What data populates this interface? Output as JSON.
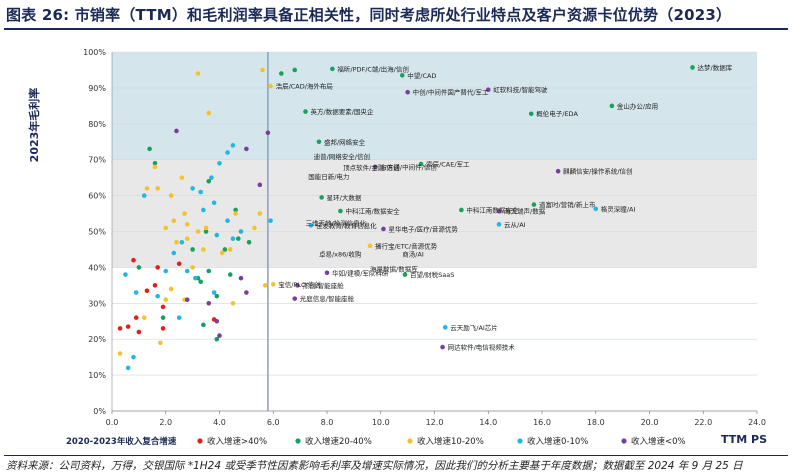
{
  "title": "图表 26: 市销率（TTM）和毛利润率具备正相关性，同时考虑所处行业特点及客户资源卡位优势（2023）",
  "source": "资料来源：公司资料，万得，交银国际 *1H24 或受季节性因素影响毛利率及增速实际情况，因此我们的分析主要基于年度数据；数据截至 2024 年 9 月 25 日",
  "colors": {
    "gt40": "#e0201b",
    "g20_40": "#16a15c",
    "g10_20": "#f5c12c",
    "g0_10": "#1fb7e6",
    "lt0": "#7b3f98",
    "band_top": "#d4e6ec",
    "band_mid": "#e8e8e8",
    "vline": "#8ea3c8"
  },
  "chart_data": {
    "type": "scatter",
    "title": "",
    "xlabel": "TTM PS",
    "ylabel": "2023年毛利率",
    "legend_title": "2020-2023年收入复合增速",
    "legend_position": "bottom",
    "xlim": [
      0,
      24
    ],
    "ylim": [
      0,
      100
    ],
    "x_ticks": [
      "0.0",
      "2.0",
      "4.0",
      "6.0",
      "8.0",
      "10.0",
      "12.0",
      "14.0",
      "16.0",
      "18.0",
      "20.0",
      "22.0",
      "24.0"
    ],
    "y_ticks": [
      "0%",
      "10%",
      "20%",
      "30%",
      "40%",
      "50%",
      "60%",
      "70%",
      "80%",
      "90%",
      "100%"
    ],
    "reference_line_x": 5.8,
    "bands": [
      {
        "from": 70,
        "to": 100,
        "fill": "band_top"
      },
      {
        "from": 40,
        "to": 70,
        "fill": "band_mid"
      }
    ],
    "series": [
      {
        "name": "收入增速>40%",
        "color_key": "gt40",
        "points": [
          {
            "x": 0.3,
            "y": 23
          },
          {
            "x": 0.6,
            "y": 23.5
          },
          {
            "x": 0.9,
            "y": 26
          },
          {
            "x": 1.0,
            "y": 22
          },
          {
            "x": 1.3,
            "y": 33.5
          },
          {
            "x": 1.6,
            "y": 35
          },
          {
            "x": 1.7,
            "y": 40
          },
          {
            "x": 1.9,
            "y": 29
          },
          {
            "x": 0.8,
            "y": 42
          },
          {
            "x": 3.8,
            "y": 25.5
          },
          {
            "x": 2.5,
            "y": 41
          },
          {
            "x": 1.9,
            "y": 23
          }
        ]
      },
      {
        "name": "收入增速20-40%",
        "color_key": "g20_40",
        "points": [
          {
            "x": 1.0,
            "y": 40
          },
          {
            "x": 1.4,
            "y": 73
          },
          {
            "x": 1.6,
            "y": 69
          },
          {
            "x": 1.9,
            "y": 26
          },
          {
            "x": 3.0,
            "y": 45
          },
          {
            "x": 3.3,
            "y": 36
          },
          {
            "x": 3.5,
            "y": 50
          },
          {
            "x": 3.6,
            "y": 64
          },
          {
            "x": 3.6,
            "y": 39
          },
          {
            "x": 3.9,
            "y": 20
          },
          {
            "x": 4.2,
            "y": 45
          },
          {
            "x": 4.4,
            "y": 38
          },
          {
            "x": 4.6,
            "y": 56
          },
          {
            "x": 4.7,
            "y": 48
          },
          {
            "x": 3.4,
            "y": 24
          },
          {
            "x": 3.2,
            "y": 37
          },
          {
            "x": 3.9,
            "y": 32
          },
          {
            "x": 6.8,
            "y": 95
          },
          {
            "x": 6.3,
            "y": 94
          },
          {
            "x": 5.1,
            "y": 47
          },
          {
            "x": 8.2,
            "y": 95.3,
            "label": "福昕/PDF/C端/出海/信创"
          },
          {
            "x": 10.8,
            "y": 93.5,
            "label": "中望/CAD"
          },
          {
            "x": 7.2,
            "y": 83.4,
            "label": "英方/数据要素/国央企"
          },
          {
            "x": 7.7,
            "y": 75,
            "label": "盛邦/网络安全"
          },
          {
            "x": 11.5,
            "y": 68.8,
            "label": "索辰/CAE/军工"
          },
          {
            "x": 7.8,
            "y": 59.5,
            "label": "星环/大数据"
          },
          {
            "x": 8.5,
            "y": 55.7,
            "label": "中科江南/数据安全"
          },
          {
            "x": 13.0,
            "y": 56,
            "label": "中科江南数据安全"
          },
          {
            "x": 10.9,
            "y": 38,
            "label": "百望/财税SaaS"
          },
          {
            "x": 21.6,
            "y": 95.7,
            "label": "达梦/数据库"
          },
          {
            "x": 18.6,
            "y": 85,
            "label": "金山办公/应用"
          },
          {
            "x": 15.6,
            "y": 82.8,
            "label": "概伦电子/EDA"
          },
          {
            "x": 15.7,
            "y": 57.5,
            "label": "道富时/营销/新上市"
          }
        ]
      },
      {
        "name": "收入增速10-20%",
        "color_key": "g10_20",
        "points": [
          {
            "x": 0.3,
            "y": 16
          },
          {
            "x": 1.3,
            "y": 62
          },
          {
            "x": 1.6,
            "y": 68
          },
          {
            "x": 1.7,
            "y": 62
          },
          {
            "x": 1.8,
            "y": 19
          },
          {
            "x": 2.0,
            "y": 51
          },
          {
            "x": 2.2,
            "y": 60
          },
          {
            "x": 2.3,
            "y": 53
          },
          {
            "x": 2.4,
            "y": 47
          },
          {
            "x": 2.6,
            "y": 65
          },
          {
            "x": 2.7,
            "y": 55
          },
          {
            "x": 2.8,
            "y": 52
          },
          {
            "x": 3.2,
            "y": 50
          },
          {
            "x": 3.2,
            "y": 94
          },
          {
            "x": 3.5,
            "y": 51
          },
          {
            "x": 3.6,
            "y": 83
          },
          {
            "x": 4.1,
            "y": 44
          },
          {
            "x": 4.4,
            "y": 45
          },
          {
            "x": 4.8,
            "y": 50
          },
          {
            "x": 5.3,
            "y": 51
          },
          {
            "x": 5.5,
            "y": 55
          },
          {
            "x": 5.6,
            "y": 95
          },
          {
            "x": 5.7,
            "y": 35
          },
          {
            "x": 2.8,
            "y": 48
          },
          {
            "x": 3.0,
            "y": 40
          },
          {
            "x": 2.7,
            "y": 31
          },
          {
            "x": 2.2,
            "y": 34
          },
          {
            "x": 3.4,
            "y": 45
          },
          {
            "x": 4.6,
            "y": 55
          },
          {
            "x": 1.2,
            "y": 26
          },
          {
            "x": 2.0,
            "y": 31
          },
          {
            "x": 4.5,
            "y": 30
          },
          {
            "x": 5.9,
            "y": 90.5,
            "label": "浩辰/CAD/海外布局"
          },
          {
            "x": 9.6,
            "y": 46,
            "label": "播行宝/ETC/音源优势"
          },
          {
            "x": 6.0,
            "y": 35.3,
            "label": "宝信/PLC/信创"
          }
        ]
      },
      {
        "name": "收入增速0-10%",
        "color_key": "g0_10",
        "points": [
          {
            "x": 0.6,
            "y": 12
          },
          {
            "x": 0.8,
            "y": 15
          },
          {
            "x": 0.9,
            "y": 33
          },
          {
            "x": 1.2,
            "y": 60
          },
          {
            "x": 1.7,
            "y": 32
          },
          {
            "x": 2.0,
            "y": 39
          },
          {
            "x": 2.3,
            "y": 44
          },
          {
            "x": 2.6,
            "y": 47
          },
          {
            "x": 2.8,
            "y": 39
          },
          {
            "x": 3.0,
            "y": 62
          },
          {
            "x": 3.3,
            "y": 61
          },
          {
            "x": 3.4,
            "y": 56
          },
          {
            "x": 3.7,
            "y": 65
          },
          {
            "x": 3.8,
            "y": 58
          },
          {
            "x": 3.9,
            "y": 49
          },
          {
            "x": 4.0,
            "y": 69
          },
          {
            "x": 4.3,
            "y": 72
          },
          {
            "x": 4.3,
            "y": 53
          },
          {
            "x": 4.5,
            "y": 74
          },
          {
            "x": 4.5,
            "y": 48
          },
          {
            "x": 4.8,
            "y": 50
          },
          {
            "x": 0.5,
            "y": 38
          },
          {
            "x": 3.8,
            "y": 33
          },
          {
            "x": 3.1,
            "y": 37
          },
          {
            "x": 2.5,
            "y": 26
          },
          {
            "x": 5.9,
            "y": 53
          },
          {
            "x": 7.4,
            "y": 51.7,
            "label": "佳发教育/教育信息化"
          },
          {
            "x": 12.4,
            "y": 23.3,
            "label": "云天励飞/AI芯片"
          },
          {
            "x": 18.0,
            "y": 56.3,
            "label": "格灵深瞳/AI"
          },
          {
            "x": 14.4,
            "y": 52,
            "label": "云从/AI"
          }
        ]
      },
      {
        "name": "收入增速<0%",
        "color_key": "lt0",
        "points": [
          {
            "x": 2.4,
            "y": 78
          },
          {
            "x": 2.8,
            "y": 31
          },
          {
            "x": 3.9,
            "y": 25
          },
          {
            "x": 4.0,
            "y": 21
          },
          {
            "x": 3.6,
            "y": 30
          },
          {
            "x": 4.8,
            "y": 37
          },
          {
            "x": 5.5,
            "y": 63
          },
          {
            "x": 5.0,
            "y": 33
          },
          {
            "x": 5.0,
            "y": 73
          },
          {
            "x": 5.8,
            "y": 77.5
          },
          {
            "x": 11.0,
            "y": 88.8,
            "label": "中创/中间件国产替代/军工"
          },
          {
            "x": 14.0,
            "y": 89.5,
            "label": "虹软科技/智能驾驶"
          },
          {
            "x": 16.6,
            "y": 66.8,
            "label": "麒麟信安/操作系统/信创"
          },
          {
            "x": 9.8,
            "y": 68.0,
            "label": "东方通/中间件/信创"
          },
          {
            "x": 14.4,
            "y": 55.7,
            "label": "海天瑞声/数据"
          },
          {
            "x": 10.1,
            "y": 50.7,
            "label": "星华电子/医疗/音源优势"
          },
          {
            "x": 6.9,
            "y": 35.0,
            "label": "杰创/智能座舱"
          },
          {
            "x": 12.3,
            "y": 17.8,
            "label": "网达软件/电信视频技术"
          },
          {
            "x": 8.0,
            "y": 38.5,
            "label": "华如/建模/军队科研"
          },
          {
            "x": 6.8,
            "y": 31.3,
            "label": "光庭信息/智能座舱"
          }
        ]
      }
    ],
    "free_labels": [
      {
        "x": 7.5,
        "y": 70.9,
        "text": "迪普/网络安全/信创"
      },
      {
        "x": 8.6,
        "y": 67.8,
        "text": "顶点软件/金融/信创"
      },
      {
        "x": 7.3,
        "y": 65.3,
        "text": "国能日新/电力"
      },
      {
        "x": 7.2,
        "y": 52.3,
        "text": "三维天地/检测信息化"
      },
      {
        "x": 7.7,
        "y": 43.7,
        "text": "卓易/x86/收购"
      },
      {
        "x": 10.8,
        "y": 43.7,
        "text": "商汤/AI"
      },
      {
        "x": 9.6,
        "y": 39.5,
        "text": "海量数据/数据库"
      }
    ]
  }
}
